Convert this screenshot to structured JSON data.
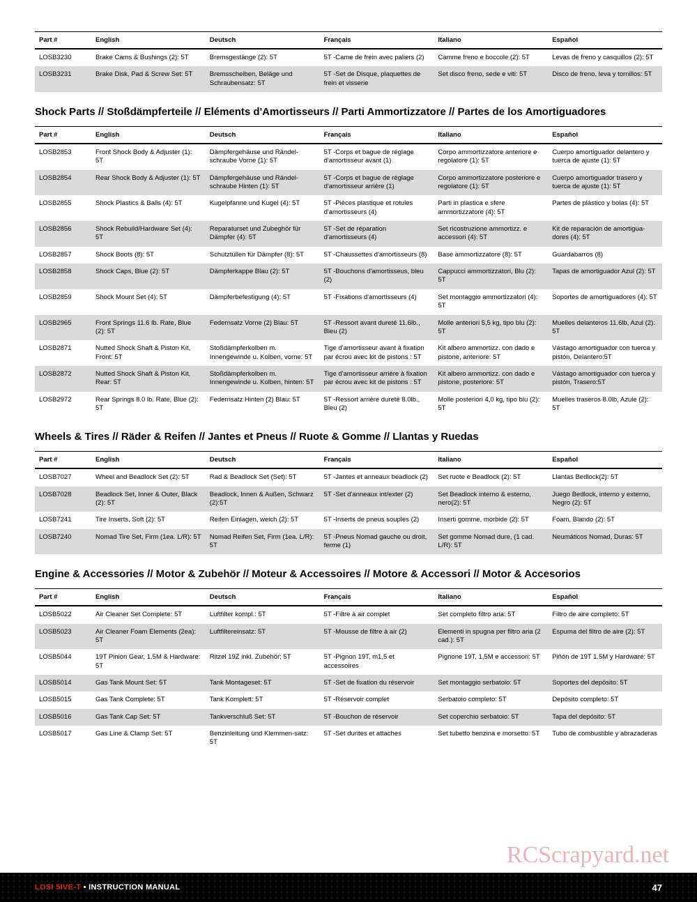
{
  "headers": {
    "part": "Part #",
    "english": "English",
    "deutsch": "Deutsch",
    "francais": "Français",
    "italiano": "Italiano",
    "espanol": "Español"
  },
  "sections": [
    {
      "title": "",
      "rows": [
        {
          "p": "LOSB3230",
          "en": "Brake Cams & Bushings (2): 5T",
          "de": "Bremsgestänge (2): 5T",
          "fr": "5T -Came de frein avec paliers (2)",
          "it": "Camme freno e boccole (2): 5T",
          "es": "Levas de freno y casquillos (2): 5T"
        },
        {
          "p": "LOSB3231",
          "en": "Brake Disk, Pad & Screw Set: 5T",
          "de": "Bremsscheiben, Beläge und Schraubensatz: 5T",
          "fr": "5T -Set de Disque, plaquettes de frein et visserie",
          "it": "Set disco freno, sede e viti: 5T",
          "es": "Disco de freno, leva y tornillos: 5T"
        }
      ]
    },
    {
      "title": "Shock Parts // Stoßdämpferteile // Eléments d'Amortisseurs // Parti Ammortizzatore // Partes de los Amortiguadores",
      "rows": [
        {
          "p": "LOSB2853",
          "en": "Front Shock Body & Adjuster (1): 5T",
          "de": "Dämpfergehäuse und Rändel-schraube Vorne (1): 5T",
          "fr": "5T -Corps et bague de réglage d'amortisseur avant (1)",
          "it": "Corpo ammortizzatore anteriore e regolatore (1): 5T",
          "es": "Cuerpo amortiguador delantero y tuerca de ajuste (1): 5T"
        },
        {
          "p": "LOSB2854",
          "en": "Rear Shock Body & Adjuster (1): 5T",
          "de": "Dämpfergehäuse und Rändel-schraube Hinten (1): 5T",
          "fr": "5T -Corps et bague de réglage d'amortisseur arrière (1)",
          "it": "Corpo ammortizzatore posteriore e regolatore (1): 5T",
          "es": "Cuerpo amortiguador trasero y tuerca de ajuste (1): 5T"
        },
        {
          "p": "LOSB2855",
          "en": "Shock Plastics & Balls (4): 5T",
          "de": "Kugelpfanne und Kugel (4): 5T",
          "fr": "5T -Pièces plastique et rotules d'amortisseurs (4)",
          "it": "Parti in plastica e sfere ammortizzatore (4): 5T",
          "es": "Partes de plástico y bolas (4): 5T"
        },
        {
          "p": "LOSB2856",
          "en": "Shock Rebuild/Hardware Set (4): 5T",
          "de": "Reparaturset und Zubeghör für Dämpfer (4): 5T",
          "fr": "5T -Set de réparation d'amortisseurs (4)",
          "it": "Set ricostruzione ammortizz. e accessori (4): 5T",
          "es": "Kit de reparación de amortigua-dores (4): 5T"
        },
        {
          "p": "LOSB2857",
          "en": "Shock Boots (8): 5T",
          "de": "Schutztüllen für Dämpfer (8): 5T",
          "fr": "5T -Chaussettes d'amortisseurs (8)",
          "it": "Base ammortizzatore (8): 5T",
          "es": "Guardabarros (8)"
        },
        {
          "p": "LOSB2858",
          "en": "Shock Caps, Blue (2): 5T",
          "de": "Dämpferkappe Blau (2): 5T",
          "fr": "5T -Bouchons d'amortisseus, bleu (2)",
          "it": "Cappucci ammortizzatori, Blu (2): 5T",
          "es": "Tapas de amortiguador Azul (2): 5T"
        },
        {
          "p": "LOSB2859",
          "en": "Shock Mount Set (4): 5T",
          "de": "Dämpferbefestigung (4): 5T",
          "fr": "5T -Fixations d'amortisseurs (4)",
          "it": "Set montaggio ammortizzatori (4): 5T",
          "es": "Soportes de amortiguadores (4): 5T"
        },
        {
          "p": "LOSB2965",
          "en": "Front Springs 11.6 lb. Rate, Blue (2): 5T",
          "de": "Federnsatz Vorne (2) Blau: 5T",
          "fr": "5T -Ressort avant dureté 11.6lb., Bleu (2)",
          "it": "Molle anteriori 5,5 kg, tipo blu (2): 5T",
          "es": "Muelles delanteros 11.6lb, Azul (2): 5T"
        },
        {
          "p": "LOSB2871",
          "en": "Nutted Shock Shaft & Piston Kit, Front: 5T",
          "de": "Stoßdämpferkolben m. Innengewinde u. Kolben, vorne: 5T",
          "fr": "Tige d'amortisseur avant à fixation par écrou avec kit de pistons : 5T",
          "it": "Kit albero ammortizz. con dado e pistone, anteriore: 5T",
          "es": "Vástago amortiguador con tuerca y pistón, Delantero:5T"
        },
        {
          "p": "LOSB2872",
          "en": "Nutted Shock Shaft & Piston Kit, Rear: 5T",
          "de": "Stoßdämpferkolben m. Innengewinde u. Kolben, hinten: 5T",
          "fr": "Tige d'amortisseur arrière à fixation par écrou avec kit de pistons : 5T",
          "it": "Kit albero ammortizz. con dado e pistone, posteriore: 5T",
          "es": "Vástago amortiguador con tuerca y pistón, Trasero:5T"
        },
        {
          "p": "LOSB2972",
          "en": "Rear Springs 8.0 lb. Rate, Blue (2): 5T",
          "de": "Federnsatz Hinten (2) Blau: 5T",
          "fr": "5T -Ressort arrière dureté 8.0lb., Bleu (2)",
          "it": "Molle posteriori 4,0 kg, tipo blu (2): 5T",
          "es": "Muelles traseros 8.0lb, Azule (2): 5T"
        }
      ]
    },
    {
      "title": "Wheels & Tires // Räder & Reifen // Jantes et Pneus // Ruote & Gomme // Llantas y Ruedas",
      "rows": [
        {
          "p": "LOSB7027",
          "en": "Wheel and Beadlock Set (2): 5T",
          "de": "Rad & Beadlock Set (Set): 5T",
          "fr": "5T -Jantes et anneaux beadlock (2)",
          "it": "Set ruote e Beadlock (2): 5T",
          "es": "Llantas Bedlock(2): 5T"
        },
        {
          "p": "LOSB7028",
          "en": "Beadlock Set, Inner & Outer, Black (2): 5T",
          "de": "Beadlock, Innen & Außen, Schwarz (2):5T",
          "fr": "5T -Set d'anneaux int/exter (2)",
          "it": "Set Beadlock interno & esterno, nero(2): 5T",
          "es": "Juego Bedlock, interno y externo, Negro (2): 5T"
        },
        {
          "p": "LOSB7241",
          "en": "Tire Inserts, Soft (2): 5T",
          "de": "Reifen Einlagen, weich (2): 5T",
          "fr": "5T -Inserts de pneus souples (2)",
          "it": "Inserti gomme, morbide (2): 5T",
          "es": "Foam, Blando (2): 5T"
        },
        {
          "p": "LOSB7240",
          "en": "Nomad Tire Set, Firm (1ea. L/R): 5T",
          "de": "Nomad Reifen Set, Firm (1ea. L/R): 5T",
          "fr": "5T -Pneus Nomad gauche ou droit, ferme (1)",
          "it": "Set gomme Nomad dure, (1 cad. L/R): 5T",
          "es": "Neumáticos Nomad, Duras: 5T"
        }
      ]
    },
    {
      "title": "Engine & Accessories // Motor & Zubehör // Moteur & Accessoires // Motore & Accessori // Motor & Accesorios",
      "rows": [
        {
          "p": "LOSB5022",
          "en": "Air Cleaner Set Complete: 5T",
          "de": "Luftfilter kompl.: 5T",
          "fr": "5T -Filtre à air complet",
          "it": "Set completo filtro aria: 5T",
          "es": "Filtro de aire completo: 5T"
        },
        {
          "p": "LOSB5023",
          "en": "Air Cleaner Foam Elements (2ea): 5T",
          "de": "Luftfiltereinsatz: 5T",
          "fr": "5T -Mousse de filtre à air (2)",
          "it": "Elementi in spugna per filtro aria (2 cad.): 5T",
          "es": "Espuma del filtro de aire (2): 5T"
        },
        {
          "p": "LOSB5044",
          "en": "19T Pinion Gear, 1.5M  & Hardware: 5T",
          "de": "Ritzel 19Z inkl. Zubehör; 5T",
          "fr": "5T -Pignon 19T, m1,5 et accessoires",
          "it": "Pignone 19T, 1,5M e accessori: 5T",
          "es": "Piñón de 19T 1.5M y Hardware: 5T"
        },
        {
          "p": "LOSB5014",
          "en": "Gas Tank Mount Set: 5T",
          "de": "Tank Montageset: 5T",
          "fr": "5T -Set de fixation du réservoir",
          "it": "Set montaggio serbatoio: 5T",
          "es": "Soportes del depósito: 5T"
        },
        {
          "p": "LOSB5015",
          "en": "Gas Tank Complete: 5T",
          "de": "Tank Komplett: 5T",
          "fr": "5T -Réservoir complet",
          "it": "Serbatoio completo: 5T",
          "es": "Depósito completo: 5T"
        },
        {
          "p": "LOSB5016",
          "en": "Gas Tank Cap Set: 5T",
          "de": "Tankverschluß Set: 5T",
          "fr": "5T -Bouchon de réservoir",
          "it": "Set coperchio serbatoio: 5T",
          "es": "Tapa del depósito: 5T"
        },
        {
          "p": "LOSB5017",
          "en": "Gas Line & Clamp Set: 5T",
          "de": "Benzinleitung und Klemmen-satz: 5T",
          "fr": "5T -Set durites et attaches",
          "it": "Set tubetto benzina e morsetto: 5T",
          "es": "Tubo de combustible y abrazaderas"
        }
      ]
    }
  ],
  "footer": {
    "left_prefix": "LOSI 5IVE-T",
    "left_bullet": " • ",
    "left_suffix": "INSTRUCTION MANUAL",
    "page": "47"
  },
  "watermark": "RCScrapyard.net",
  "styling": {
    "row_alt_bg": "#d9d9d9",
    "row_bg": "#ffffff",
    "header_border_top": "1px solid #000",
    "header_border_bottom": "2px solid #000",
    "title_font_size": "15px",
    "body_font_size": "9.5px",
    "footer_bg": "#000000",
    "footer_text": "#ffffff",
    "footer_accent": "#d9261c",
    "watermark_color": "#e8a8a8"
  }
}
